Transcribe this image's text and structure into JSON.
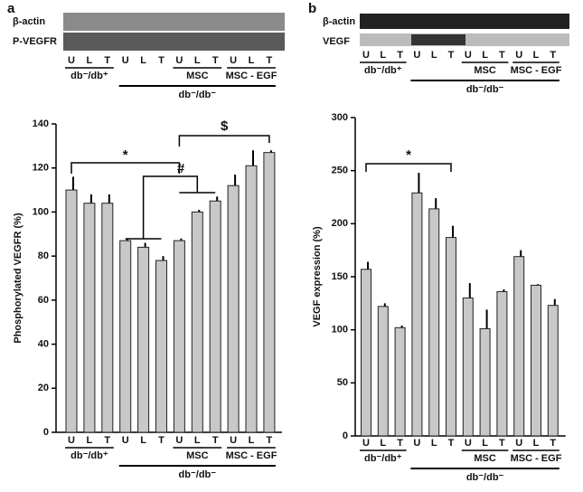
{
  "chart_data": [
    {
      "type": "bar",
      "panel": "a",
      "blot_labels": [
        "β-actin",
        "P-VEGFR"
      ],
      "ylabel": "Phosphorylated VEGFR (%)",
      "categories": [
        "U",
        "L",
        "T",
        "U",
        "L",
        "T",
        "U",
        "L",
        "T",
        "U",
        "L",
        "T"
      ],
      "values": [
        110,
        104,
        104,
        87,
        84,
        78,
        87,
        100,
        105,
        112,
        121,
        127
      ],
      "errors": [
        6,
        4,
        4,
        1,
        2,
        2,
        1,
        1,
        2,
        5,
        7,
        1
      ],
      "groups": [
        "db⁻/db⁺",
        "MSC",
        "MSC - EGF"
      ],
      "outer_group": "db⁻/db⁻",
      "annotations": [
        "*",
        "#",
        "$"
      ],
      "color": "#c8c8c8",
      "ylim": [
        0,
        140
      ],
      "yticks": [
        0,
        20,
        40,
        60,
        80,
        100,
        120,
        140
      ]
    },
    {
      "type": "bar",
      "panel": "b",
      "blot_labels": [
        "β-actin",
        "VEGF"
      ],
      "ylabel": "VEGF expression (%)",
      "categories": [
        "U",
        "L",
        "T",
        "U",
        "L",
        "T",
        "U",
        "L",
        "T",
        "U",
        "L",
        "T"
      ],
      "values": [
        157,
        122,
        102,
        229,
        214,
        187,
        130,
        101,
        136,
        169,
        142,
        123
      ],
      "errors": [
        7,
        3,
        2,
        19,
        10,
        11,
        14,
        18,
        2,
        6,
        1,
        6
      ],
      "groups": [
        "db⁻/db⁺",
        "MSC",
        "MSC - EGF"
      ],
      "outer_group": "db⁻/db⁻",
      "annotations": [
        "*"
      ],
      "color": "#c8c8c8",
      "ylim": [
        0,
        300
      ],
      "yticks": [
        0,
        50,
        100,
        150,
        200,
        250,
        300
      ]
    }
  ]
}
